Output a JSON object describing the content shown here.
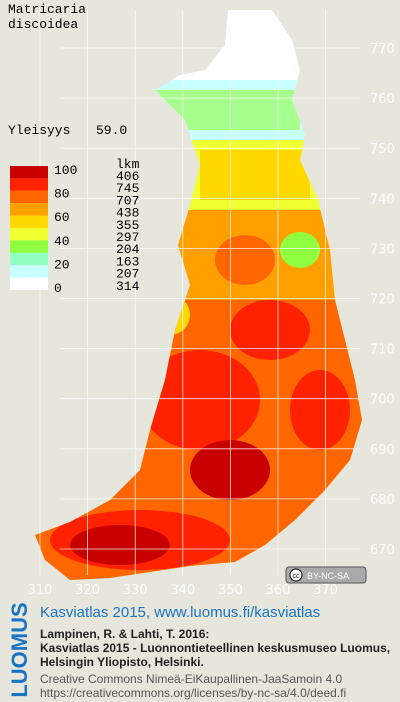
{
  "header": {
    "species": [
      "Matricaria",
      "discoidea"
    ],
    "frequency_label": "Yleisyys",
    "frequency_value": "59.0"
  },
  "legend": {
    "scale_labels": [
      "100",
      "80",
      "60",
      "40",
      "20",
      "0"
    ],
    "count_header": "lkm",
    "counts": [
      406,
      745,
      707,
      438,
      355,
      297,
      204,
      163,
      207,
      314
    ],
    "colors": [
      "#c80000",
      "#ff2200",
      "#ff6600",
      "#ffa000",
      "#ffd800",
      "#f0ff30",
      "#90ff40",
      "#90ffc0",
      "#c8ffff",
      "#ffffff"
    ]
  },
  "grid": {
    "north": [
      770,
      760,
      750,
      740,
      730,
      720,
      710,
      700,
      690,
      680,
      670
    ],
    "east": [
      310,
      320,
      330,
      340,
      350,
      360,
      370
    ]
  },
  "badge": "BY-NC-SA",
  "footer": {
    "logo": "LUOMUS",
    "link": "Kasviatlas 2015, www.luomus.fi/kasviatlas",
    "citation": [
      "Lampinen, R. & Lahti, T. 2016:",
      "Kasviatlas 2015 - Luonnontieteellinen keskusmuseo Luomus,",
      "Helsingin Yliopisto, Helsinki."
    ],
    "license": [
      "Creative Commons Nimeä-EiKaupallinen-JaaSamoin 4.0",
      "https://creativecommons.org/licenses/by-nc-sa/4.0/deed.fi"
    ]
  }
}
